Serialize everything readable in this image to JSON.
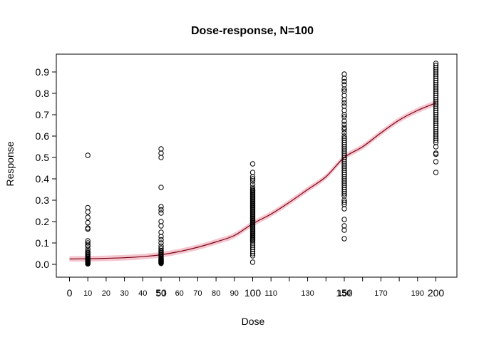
{
  "chart_data": {
    "type": "scatter",
    "title": "Dose-response, N=100",
    "xlabel": "Dose",
    "ylabel": "Response",
    "xlim": [
      -5,
      205
    ],
    "ylim": [
      -0.04,
      0.95
    ],
    "y_ticks": [
      "0.0",
      "0.1",
      "0.2",
      "0.3",
      "0.4",
      "0.5",
      "0.6",
      "0.7",
      "0.8",
      "0.9"
    ],
    "x_ticks_major": [
      {
        "label": "0",
        "value": 0
      },
      {
        "label": "50",
        "value": 50
      },
      {
        "label": "100",
        "value": 100
      },
      {
        "label": "150",
        "value": 150
      },
      {
        "label": "200",
        "value": 200
      }
    ],
    "x_ticks_minor": [
      {
        "label": "10",
        "value": 10
      },
      {
        "label": "20",
        "value": 20
      },
      {
        "label": "30",
        "value": 30
      },
      {
        "label": "40",
        "value": 40
      },
      {
        "label": "50",
        "value": 50
      },
      {
        "label": "60",
        "value": 60
      },
      {
        "label": "70",
        "value": 70
      },
      {
        "label": "80",
        "value": 80
      },
      {
        "label": "90",
        "value": 90
      },
      {
        "label": "110",
        "value": 110
      },
      {
        "label": "130",
        "value": 130
      },
      {
        "label": "150",
        "value": 150
      },
      {
        "label": "170",
        "value": 170
      },
      {
        "label": "190",
        "value": 190
      }
    ],
    "x_tick_marks": [
      0,
      10,
      20,
      30,
      40,
      50,
      60,
      70,
      80,
      90,
      100,
      110,
      120,
      130,
      140,
      150,
      160,
      170,
      180,
      190,
      200
    ],
    "series": [
      {
        "x": 10,
        "y": [
          0.51,
          0.265,
          0.245,
          0.22,
          0.195,
          0.17,
          0.165,
          0.11,
          0.1,
          0.09,
          0.085,
          0.07,
          0.06,
          0.055,
          0.05,
          0.045,
          0.04,
          0.035,
          0.03,
          0.028,
          0.025,
          0.022,
          0.02,
          0.018,
          0.016,
          0.014,
          0.012,
          0.01,
          0.008,
          0.006,
          0.005,
          0.004,
          0.003,
          0.002
        ]
      },
      {
        "x": 50,
        "y": [
          0.54,
          0.52,
          0.5,
          0.36,
          0.27,
          0.255,
          0.24,
          0.2,
          0.18,
          0.15,
          0.13,
          0.115,
          0.1,
          0.085,
          0.075,
          0.065,
          0.06,
          0.055,
          0.05,
          0.045,
          0.04,
          0.035,
          0.03,
          0.028,
          0.025,
          0.022,
          0.02,
          0.018,
          0.016,
          0.014,
          0.012,
          0.01,
          0.008,
          0.006,
          0.004
        ]
      },
      {
        "x": 100,
        "y": [
          0.47,
          0.43,
          0.41,
          0.4,
          0.39,
          0.375,
          0.36,
          0.35,
          0.345,
          0.34,
          0.335,
          0.33,
          0.325,
          0.32,
          0.315,
          0.31,
          0.305,
          0.3,
          0.295,
          0.29,
          0.285,
          0.28,
          0.275,
          0.27,
          0.265,
          0.26,
          0.255,
          0.25,
          0.245,
          0.24,
          0.235,
          0.23,
          0.225,
          0.22,
          0.215,
          0.21,
          0.205,
          0.2,
          0.195,
          0.19,
          0.185,
          0.18,
          0.175,
          0.17,
          0.165,
          0.16,
          0.155,
          0.15,
          0.145,
          0.14,
          0.135,
          0.13,
          0.125,
          0.12,
          0.115,
          0.11,
          0.1,
          0.09,
          0.08,
          0.07,
          0.06,
          0.05,
          0.04,
          0.01
        ]
      },
      {
        "x": 150,
        "y": [
          0.89,
          0.87,
          0.855,
          0.84,
          0.82,
          0.81,
          0.79,
          0.77,
          0.755,
          0.74,
          0.72,
          0.7,
          0.69,
          0.67,
          0.655,
          0.64,
          0.63,
          0.615,
          0.6,
          0.59,
          0.58,
          0.57,
          0.56,
          0.55,
          0.54,
          0.53,
          0.52,
          0.51,
          0.5,
          0.49,
          0.48,
          0.47,
          0.46,
          0.45,
          0.44,
          0.43,
          0.42,
          0.41,
          0.4,
          0.39,
          0.38,
          0.37,
          0.36,
          0.35,
          0.34,
          0.33,
          0.32,
          0.3,
          0.29,
          0.28,
          0.26,
          0.21,
          0.18,
          0.16,
          0.12
        ]
      },
      {
        "x": 200,
        "y": [
          0.94,
          0.93,
          0.92,
          0.91,
          0.9,
          0.89,
          0.88,
          0.87,
          0.86,
          0.85,
          0.84,
          0.83,
          0.82,
          0.81,
          0.8,
          0.79,
          0.78,
          0.77,
          0.76,
          0.75,
          0.74,
          0.73,
          0.72,
          0.71,
          0.7,
          0.69,
          0.68,
          0.67,
          0.66,
          0.65,
          0.64,
          0.63,
          0.62,
          0.61,
          0.6,
          0.59,
          0.58,
          0.57,
          0.55,
          0.52,
          0.515,
          0.48,
          0.43
        ]
      }
    ],
    "fit_curve": {
      "x": [
        0,
        10,
        20,
        30,
        40,
        50,
        60,
        70,
        80,
        90,
        100,
        110,
        120,
        130,
        140,
        150,
        160,
        170,
        180,
        190,
        200
      ],
      "y": [
        0.025,
        0.026,
        0.028,
        0.031,
        0.036,
        0.045,
        0.06,
        0.08,
        0.105,
        0.135,
        0.19,
        0.235,
        0.29,
        0.35,
        0.41,
        0.5,
        0.55,
        0.615,
        0.675,
        0.72,
        0.755
      ],
      "band_halfwidth": 0.013
    },
    "colors": {
      "points": "#000000",
      "curve": "#7a0010",
      "band": "#f4c6d0",
      "axis": "#000000"
    },
    "grid": false
  }
}
